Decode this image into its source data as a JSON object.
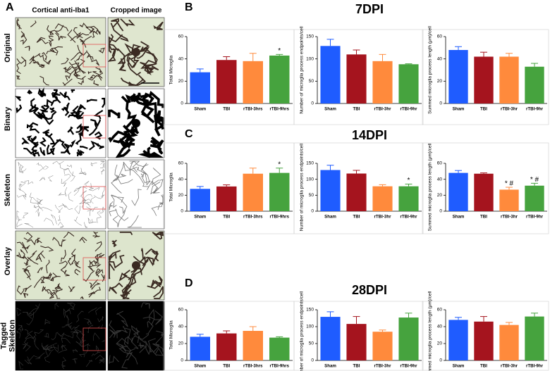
{
  "panels": [
    "A",
    "B",
    "C",
    "D"
  ],
  "image_panel": {
    "columns": [
      "Cortical anti-Iba1",
      "Cropped image"
    ],
    "rows": [
      "Original",
      "Binary",
      "Skeleton",
      "Overlay",
      "Tagged Skeleton"
    ]
  },
  "chart_data": [
    {
      "type": "bar",
      "ylabel": "Total Microglia",
      "categories": [
        "Sham",
        "TBI",
        "rTBI-3hrs",
        "rTBI-9hrs"
      ],
      "values": [
        28,
        39,
        38,
        43
      ],
      "errors": [
        3,
        3,
        7,
        1
      ],
      "annotations": [
        null,
        null,
        null,
        "*"
      ],
      "colors": [
        "#1f5cff",
        "#a5141e",
        "#ff8a3c",
        "#46a33e"
      ],
      "ylim": [
        0,
        60
      ],
      "yticks": [
        0,
        20,
        40,
        60
      ]
    },
    {
      "type": "bar",
      "title": "7DPI",
      "ylabel": "Number of microglia process endpoints/cell",
      "categories": [
        "Sham",
        "TBI",
        "rTBI-3hr",
        "rTBI-9hr"
      ],
      "values": [
        129,
        110,
        95,
        88
      ],
      "errors": [
        15,
        10,
        15,
        1
      ],
      "colors": [
        "#1f5cff",
        "#a5141e",
        "#ff8a3c",
        "#46a33e"
      ],
      "ylim": [
        0,
        150
      ],
      "yticks": [
        0,
        50,
        100,
        150
      ]
    },
    {
      "type": "bar",
      "ylabel": "Summed microglia process length (μm)/cell",
      "categories": [
        "Sham",
        "TBI",
        "rTBI-3hr",
        "rTBI-9hr"
      ],
      "values": [
        48,
        42,
        42,
        33
      ],
      "errors": [
        3,
        4,
        3,
        3
      ],
      "colors": [
        "#1f5cff",
        "#a5141e",
        "#ff8a3c",
        "#46a33e"
      ],
      "ylim": [
        0,
        60
      ],
      "yticks": [
        0,
        20,
        40,
        60
      ]
    },
    {
      "type": "bar",
      "ylabel": "Total Microglia",
      "categories": [
        "Sham",
        "TBI",
        "rTBI-3hrs",
        "rTBI-9hrs"
      ],
      "values": [
        28,
        31,
        47,
        48
      ],
      "errors": [
        3,
        2,
        7,
        6
      ],
      "annotations": [
        null,
        null,
        null,
        "*"
      ],
      "colors": [
        "#1f5cff",
        "#a5141e",
        "#ff8a3c",
        "#46a33e"
      ],
      "ylim": [
        0,
        60
      ],
      "yticks": [
        0,
        20,
        40,
        60
      ]
    },
    {
      "type": "bar",
      "title": "14DPI",
      "ylabel": "Number of microglia process endpoints/cell",
      "categories": [
        "Sham",
        "TBI",
        "rTBI-3hr",
        "rTBI-9hr"
      ],
      "values": [
        129,
        118,
        78,
        78
      ],
      "errors": [
        15,
        10,
        5,
        7
      ],
      "annotations": [
        null,
        null,
        null,
        "*"
      ],
      "colors": [
        "#1f5cff",
        "#a5141e",
        "#ff8a3c",
        "#46a33e"
      ],
      "ylim": [
        0,
        150
      ],
      "yticks": [
        0,
        50,
        100,
        150
      ]
    },
    {
      "type": "bar",
      "ylabel": "Summed microglia process length (μm)/cell",
      "categories": [
        "Sham",
        "TBI",
        "rTBI-3hr",
        "rTBI-9hr"
      ],
      "values": [
        48,
        47,
        27,
        32
      ],
      "errors": [
        3,
        1,
        3,
        3
      ],
      "annotations": [
        null,
        null,
        "* #",
        "* #"
      ],
      "colors": [
        "#1f5cff",
        "#a5141e",
        "#ff8a3c",
        "#46a33e"
      ],
      "ylim": [
        0,
        60
      ],
      "yticks": [
        0,
        20,
        40,
        60
      ]
    },
    {
      "type": "bar",
      "ylabel": "Total Microglia",
      "categories": [
        "Sham",
        "TBI",
        "rTBI-3hrs",
        "rTBI-9hrs"
      ],
      "values": [
        28,
        32,
        35,
        27
      ],
      "errors": [
        3,
        3,
        5,
        1
      ],
      "colors": [
        "#1f5cff",
        "#a5141e",
        "#ff8a3c",
        "#46a33e"
      ],
      "ylim": [
        0,
        60
      ],
      "yticks": [
        0,
        20,
        40,
        60
      ]
    },
    {
      "type": "bar",
      "title": "28DPI",
      "ylabel": "Number of microglia process endpoints/cell",
      "categories": [
        "Sham",
        "TBI",
        "rTBI-3hr",
        "rTBI-9hr"
      ],
      "values": [
        129,
        108,
        85,
        127
      ],
      "errors": [
        15,
        22,
        5,
        13
      ],
      "colors": [
        "#1f5cff",
        "#a5141e",
        "#ff8a3c",
        "#46a33e"
      ],
      "ylim": [
        0,
        150
      ],
      "yticks": [
        0,
        50,
        100,
        150
      ]
    },
    {
      "type": "bar",
      "ylabel": "Summed microglia process length (μm)/cell",
      "categories": [
        "Sham",
        "TBI",
        "rTBI-3hr",
        "rTBI-9hr"
      ],
      "values": [
        48,
        46,
        42,
        52
      ],
      "errors": [
        3,
        6,
        3,
        4
      ],
      "colors": [
        "#1f5cff",
        "#a5141e",
        "#ff8a3c",
        "#46a33e"
      ],
      "ylim": [
        0,
        60
      ],
      "yticks": [
        0,
        20,
        40,
        60
      ]
    }
  ]
}
